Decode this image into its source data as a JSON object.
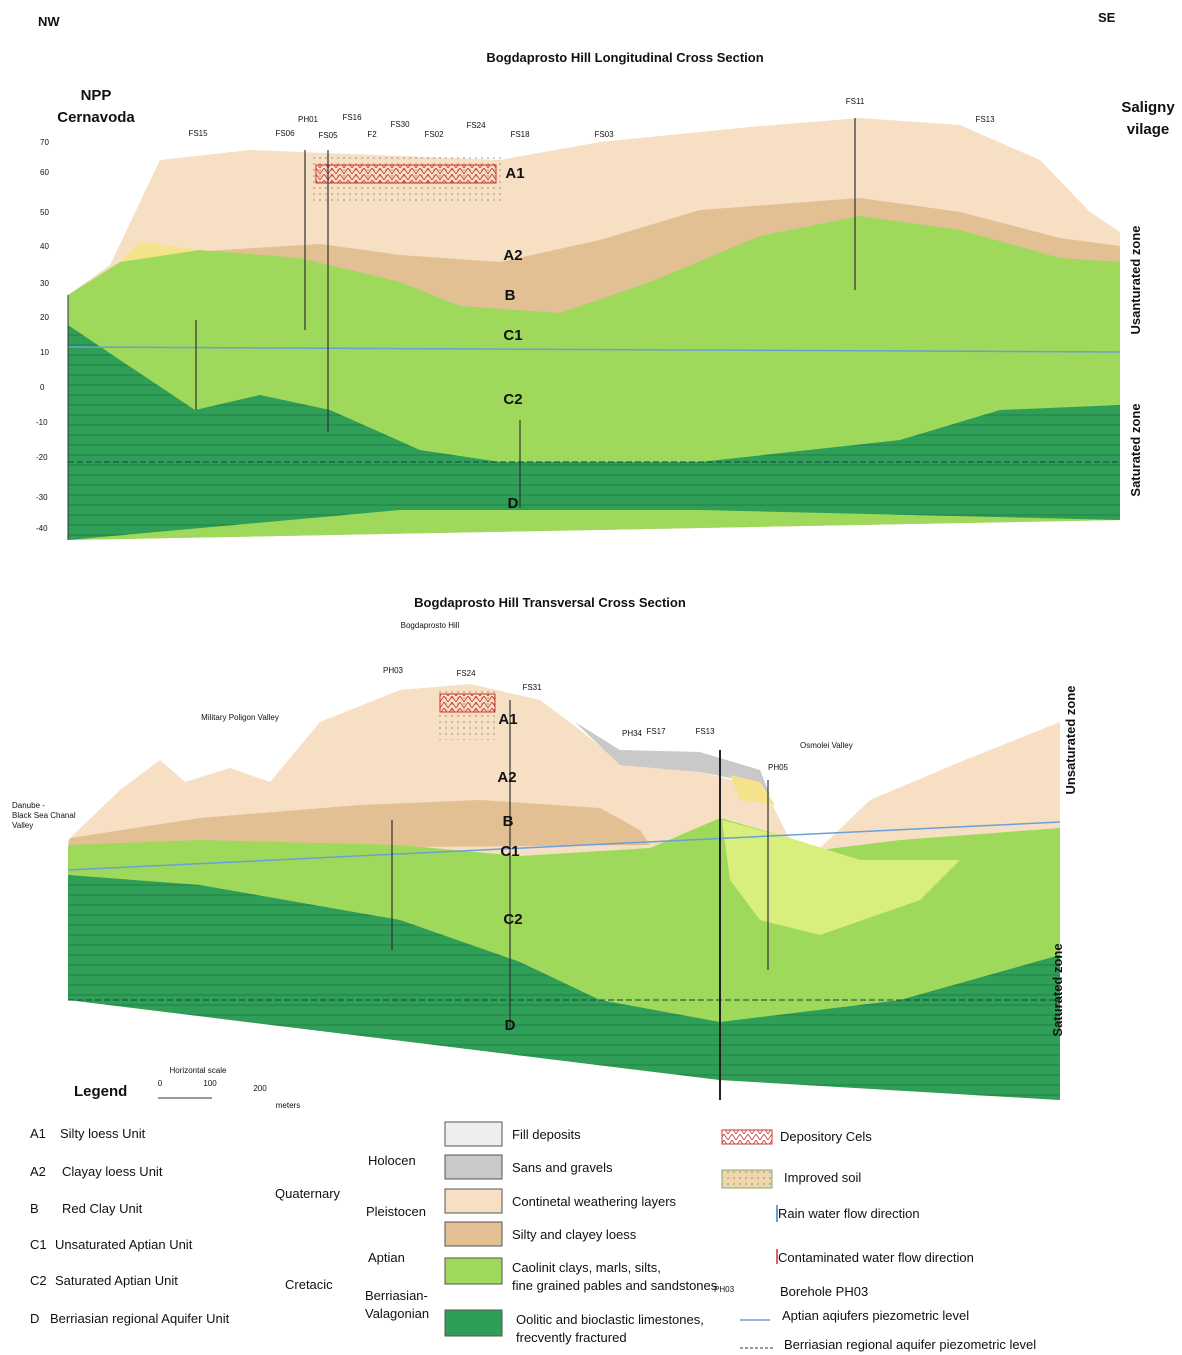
{
  "header": {
    "left_direction": "NW",
    "right_direction": "SE"
  },
  "longitudinal": {
    "title": "Bogdaprosto Hill Longitudinal Cross Section",
    "left_site": [
      "NPP",
      "Cernavoda"
    ],
    "right_site": [
      "Saligny",
      "vilage"
    ],
    "boreholes": [
      "FS15",
      "FS06",
      "PH01",
      "FS05",
      "FS16",
      "F2",
      "FS30",
      "FS02",
      "FS24",
      "FS18",
      "FS03",
      "FS11",
      "FS13"
    ],
    "elevations": [
      "70",
      "60",
      "50",
      "40",
      "30",
      "20",
      "10",
      "0",
      "-10",
      "-20",
      "-30",
      "-40"
    ],
    "units": [
      "A1",
      "A2",
      "B",
      "C1",
      "C2",
      "D"
    ],
    "zones": [
      "Usanturated zone",
      "Saturated zone"
    ]
  },
  "transversal": {
    "title": "Bogdaprosto Hill Transversal Cross Section",
    "hill": "Bogdaprosto Hill",
    "boreholes": [
      "PH03",
      "FS24",
      "FS31",
      "PH34",
      "FS17",
      "FS13",
      "PH05"
    ],
    "places": [
      "Military Poligon Valley",
      "Osmolei Valley"
    ],
    "left_place": [
      "Danube -",
      "Black Sea Chanal",
      "Valley"
    ],
    "units": [
      "A1",
      "A2",
      "B",
      "C1",
      "C2",
      "D"
    ],
    "zones": [
      "Unsaturated zone",
      "Saturated zone"
    ]
  },
  "legend": {
    "title": "Legend",
    "scale": {
      "title": "Horizontal scale",
      "ticks": [
        "0",
        "100",
        "200"
      ],
      "unit": "meters"
    },
    "units": [
      {
        "code": "A1",
        "name": "Silty loess Unit"
      },
      {
        "code": "A2",
        "name": "Clayay loess Unit"
      },
      {
        "code": "B",
        "name": "Red Clay Unit"
      },
      {
        "code": "C1",
        "name": "Unsaturated Aptian Unit"
      },
      {
        "code": "C2",
        "name": "Saturated Aptian Unit"
      },
      {
        "code": "D",
        "name": "Berriasian regional Aquifer Unit"
      }
    ],
    "periods": [
      "Quaternary",
      "Cretacic"
    ],
    "epochs": [
      "Holocen",
      "Pleistocen",
      "Aptian",
      [
        "Berriasian-",
        "Valagonian"
      ]
    ],
    "materials": [
      [
        "Fill deposits"
      ],
      [
        "Sans and gravels"
      ],
      [
        "Continetal weathering layers"
      ],
      [
        "Silty and clayey loess"
      ],
      [
        "Caolinit clays, marls, silts,",
        "fine grained pables and sandstones"
      ],
      [
        "Oolitic and bioclastic limestones,",
        "frecvently fractured"
      ]
    ],
    "symbols": [
      "Depository Cels",
      "Improved soil",
      "Rain water flow direction",
      "Contaminated water flow direction",
      {
        "code": "PH03",
        "text": "Borehole PH03"
      },
      "Aptian aqiufers piezometric level",
      "Berriasian regional aquifer piezometric level"
    ]
  }
}
